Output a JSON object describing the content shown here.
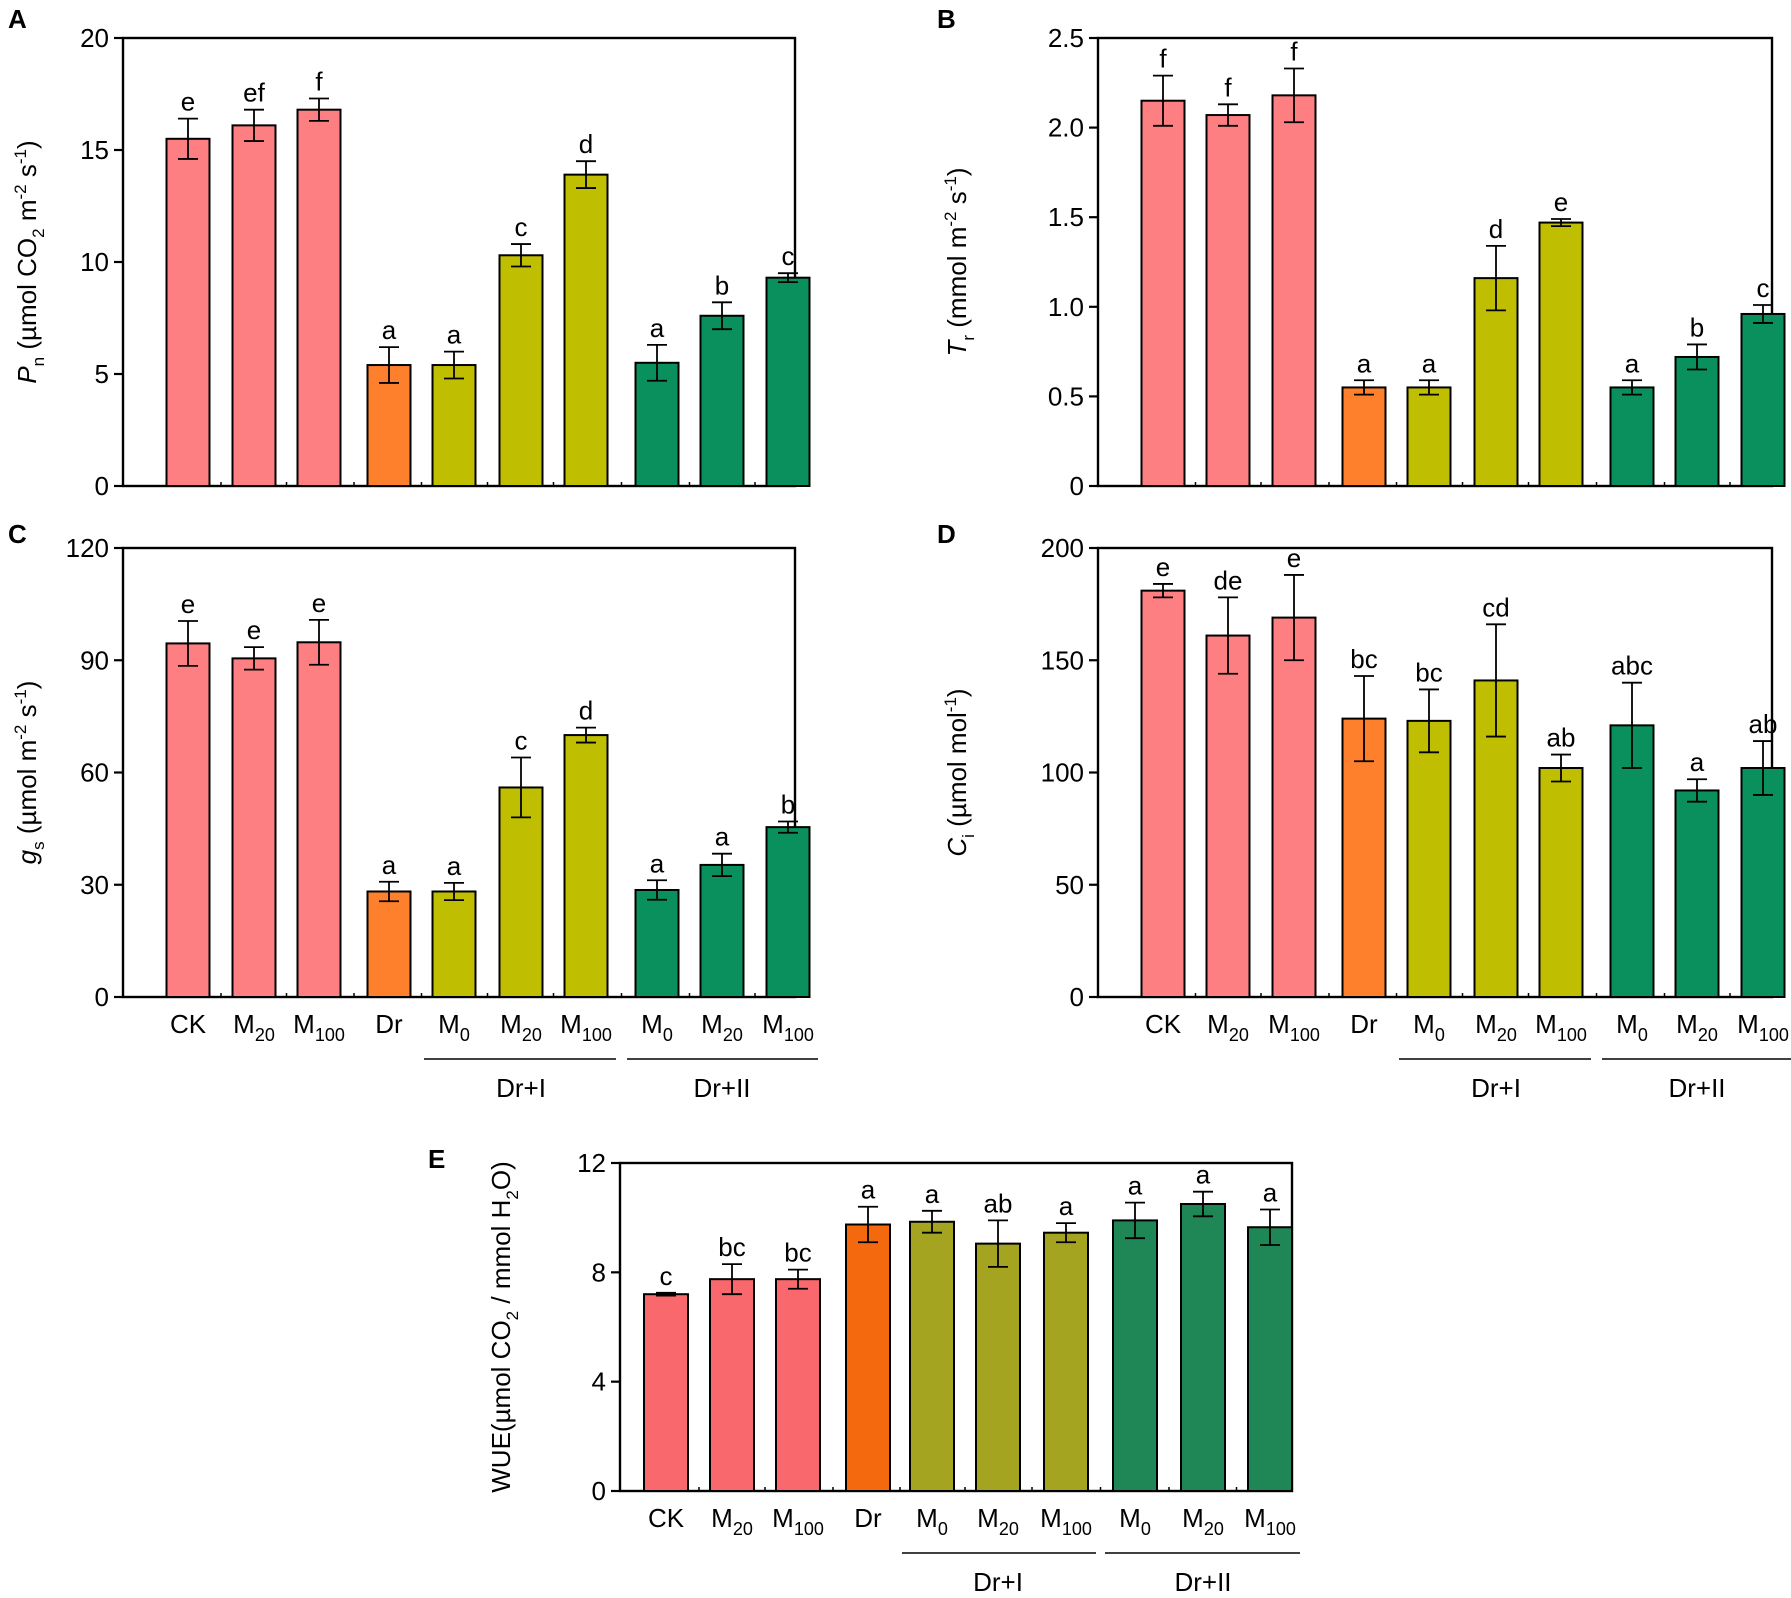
{
  "figure": {
    "group_labels": {
      "dr_i": "Dr+I",
      "dr_ii": "Dr+II"
    },
    "colors": {
      "ck": "#fe7f82",
      "dr": "#fe7f2c",
      "dr_i": "#bfbe00",
      "dr_ii": "#0a905c",
      "ck_e": "#f9686c",
      "dr_e": "#f4690e",
      "dr_i_e": "#a4a421",
      "dr_ii_e": "#1f8655"
    }
  },
  "chart_data": [
    {
      "panel": "A",
      "type": "bar",
      "ylabel_main": "P",
      "ylabel_sub": "n",
      "ylabel_rest": " (µmol CO",
      "ylabel_sub2": "2",
      "ylabel_tail": " m",
      "ylabel_sup1": "-2",
      "ylabel_tail2": " s",
      "ylabel_sup2": "-1",
      "ylabel_close": ")",
      "ylim": [
        0,
        20
      ],
      "yticks": [
        "0",
        "5",
        "10",
        "15",
        "20"
      ],
      "categories": [
        "CK",
        "M20",
        "M100",
        "Dr",
        "M0",
        "M20",
        "M100",
        "M0",
        "M20",
        "M100"
      ],
      "groups": [
        "ck",
        "ck",
        "ck",
        "dr",
        "dr_i",
        "dr_i",
        "dr_i",
        "dr_ii",
        "dr_ii",
        "dr_ii"
      ],
      "values": [
        15.5,
        16.1,
        16.8,
        5.4,
        5.4,
        10.3,
        13.9,
        5.5,
        7.6,
        9.3
      ],
      "errors": [
        0.9,
        0.7,
        0.5,
        0.8,
        0.6,
        0.5,
        0.6,
        0.8,
        0.6,
        0.2
      ],
      "letters": [
        "e",
        "ef",
        "f",
        "a",
        "a",
        "c",
        "d",
        "a",
        "b",
        "c"
      ],
      "show_xlabels": false
    },
    {
      "panel": "B",
      "type": "bar",
      "ylabel_main": "T",
      "ylabel_sub": "r",
      "ylabel_rest": " (mmol m",
      "ylabel_sup1": "-2",
      "ylabel_tail2": " s",
      "ylabel_sup2": "-1",
      "ylabel_close": ")",
      "ylim": [
        0,
        2.5
      ],
      "yticks": [
        "0",
        "0.5",
        "1.0",
        "1.5",
        "2.0",
        "2.5"
      ],
      "categories": [
        "CK",
        "M20",
        "M100",
        "Dr",
        "M0",
        "M20",
        "M100",
        "M0",
        "M20",
        "M100"
      ],
      "groups": [
        "ck",
        "ck",
        "ck",
        "dr",
        "dr_i",
        "dr_i",
        "dr_i",
        "dr_ii",
        "dr_ii",
        "dr_ii"
      ],
      "values": [
        2.15,
        2.07,
        2.18,
        0.55,
        0.55,
        1.16,
        1.47,
        0.55,
        0.72,
        0.96
      ],
      "errors": [
        0.14,
        0.06,
        0.15,
        0.04,
        0.04,
        0.18,
        0.02,
        0.04,
        0.07,
        0.05
      ],
      "letters": [
        "f",
        "f",
        "f",
        "a",
        "a",
        "d",
        "e",
        "a",
        "b",
        "c"
      ],
      "show_xlabels": false
    },
    {
      "panel": "C",
      "type": "bar",
      "ylabel_main": "g",
      "ylabel_sub": "s",
      "ylabel_rest": " (µmol m",
      "ylabel_sup1": "-2",
      "ylabel_tail2": " s",
      "ylabel_sup2": "-1",
      "ylabel_close": ")",
      "ylim": [
        0,
        120
      ],
      "yticks": [
        "0",
        "30",
        "60",
        "90",
        "120"
      ],
      "categories": [
        "CK",
        "M20",
        "M100",
        "Dr",
        "M0",
        "M20",
        "M100",
        "M0",
        "M20",
        "M100"
      ],
      "groups": [
        "ck",
        "ck",
        "ck",
        "dr",
        "dr_i",
        "dr_i",
        "dr_i",
        "dr_ii",
        "dr_ii",
        "dr_ii"
      ],
      "values": [
        94.5,
        90.5,
        94.8,
        28.2,
        28.2,
        56.0,
        70.0,
        28.6,
        35.3,
        45.4
      ],
      "errors": [
        6.0,
        3.0,
        6.0,
        2.6,
        2.3,
        8.0,
        2.0,
        2.6,
        3.0,
        1.5
      ],
      "letters": [
        "e",
        "e",
        "e",
        "a",
        "a",
        "c",
        "d",
        "a",
        "a",
        "b"
      ],
      "show_xlabels": true
    },
    {
      "panel": "D",
      "type": "bar",
      "ylabel_main": "C",
      "ylabel_sub": "i",
      "ylabel_rest": " (µmol mol",
      "ylabel_sup1": "-1",
      "ylabel_close": ")",
      "ylim": [
        0,
        200
      ],
      "yticks": [
        "0",
        "50",
        "100",
        "150",
        "200"
      ],
      "categories": [
        "CK",
        "M20",
        "M100",
        "Dr",
        "M0",
        "M20",
        "M100",
        "M0",
        "M20",
        "M100"
      ],
      "groups": [
        "ck",
        "ck",
        "ck",
        "dr",
        "dr_i",
        "dr_i",
        "dr_i",
        "dr_ii",
        "dr_ii",
        "dr_ii"
      ],
      "values": [
        181,
        161,
        169,
        124,
        123,
        141,
        102,
        121,
        92,
        102
      ],
      "errors": [
        3,
        17,
        19,
        19,
        14,
        25,
        6,
        19,
        5,
        12
      ],
      "letters": [
        "e",
        "de",
        "e",
        "bc",
        "bc",
        "cd",
        "ab",
        "abc",
        "a",
        "ab"
      ],
      "show_xlabels": true
    },
    {
      "panel": "E",
      "type": "bar",
      "ylabel_main": "WUE",
      "ylabel_rest": "(µmol CO",
      "ylabel_sub2": "2",
      "ylabel_tail": " / mmol H",
      "ylabel_sub3": "2",
      "ylabel_close": "O)",
      "ylim": [
        0,
        12
      ],
      "yticks": [
        "0",
        "4",
        "8",
        "12"
      ],
      "categories": [
        "CK",
        "M20",
        "M100",
        "Dr",
        "M0",
        "M20",
        "M100",
        "M0",
        "M20",
        "M100"
      ],
      "groups": [
        "ck_e",
        "ck_e",
        "ck_e",
        "dr_e",
        "dr_i_e",
        "dr_i_e",
        "dr_i_e",
        "dr_ii_e",
        "dr_ii_e",
        "dr_ii_e"
      ],
      "values": [
        7.2,
        7.75,
        7.75,
        9.75,
        9.85,
        9.05,
        9.45,
        9.9,
        10.5,
        9.65
      ],
      "errors": [
        0.05,
        0.55,
        0.35,
        0.65,
        0.4,
        0.85,
        0.35,
        0.65,
        0.45,
        0.65
      ],
      "letters": [
        "c",
        "bc",
        "bc",
        "a",
        "a",
        "ab",
        "a",
        "a",
        "a",
        "a"
      ],
      "show_xlabels": true
    }
  ]
}
